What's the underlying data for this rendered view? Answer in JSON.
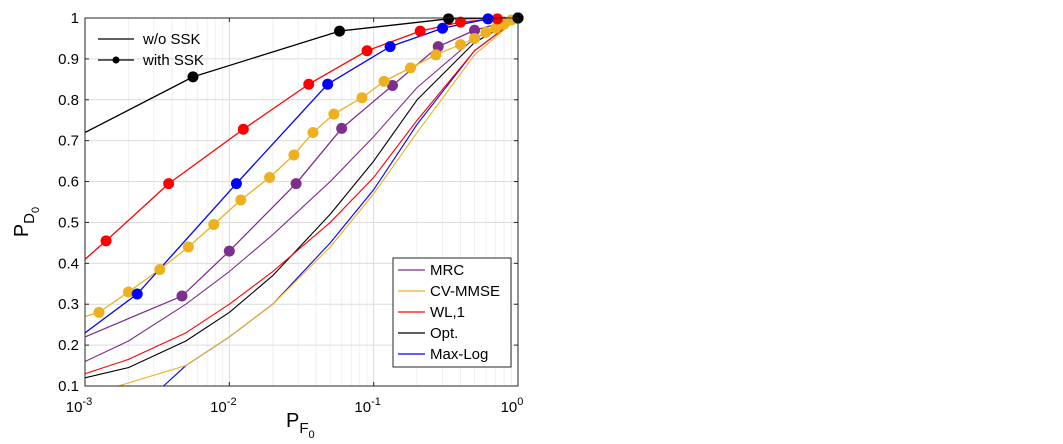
{
  "chart_data": {
    "type": "line",
    "xscale": "log",
    "xlim": [
      0.001,
      1
    ],
    "ylim": [
      0.1,
      1
    ],
    "grid": true,
    "xlabel": {
      "main": "P",
      "sub1": "F",
      "sub2": "0"
    },
    "ylabel": {
      "main": "P",
      "sub1": "D",
      "sub2": "0"
    },
    "x_ticks": [
      {
        "value": 0.001,
        "base": "10",
        "exp": "-3"
      },
      {
        "value": 0.01,
        "base": "10",
        "exp": "-2"
      },
      {
        "value": 0.1,
        "base": "10",
        "exp": "-1"
      },
      {
        "value": 1,
        "base": "10",
        "exp": "0"
      }
    ],
    "y_ticks": [
      {
        "value": 0.1,
        "label": "0.1"
      },
      {
        "value": 0.2,
        "label": "0.2"
      },
      {
        "value": 0.3,
        "label": "0.3"
      },
      {
        "value": 0.4,
        "label": "0.4"
      },
      {
        "value": 0.5,
        "label": "0.5"
      },
      {
        "value": 0.6,
        "label": "0.6"
      },
      {
        "value": 0.7,
        "label": "0.7"
      },
      {
        "value": 0.8,
        "label": "0.8"
      },
      {
        "value": 0.9,
        "label": "0.9"
      },
      {
        "value": 1,
        "label": "1"
      }
    ],
    "legend_style": {
      "position": "top-left",
      "entries": [
        {
          "label": "w/o SSK",
          "marker": false
        },
        {
          "label": "with SSK",
          "marker": true
        }
      ]
    },
    "legend_detectors": {
      "position": "bottom-right",
      "entries": [
        {
          "label": "MRC",
          "color": "#7E2F8E"
        },
        {
          "label": "CV-MMSE",
          "color": "#EDB120"
        },
        {
          "label": "WL,1",
          "color": "#FF0000"
        },
        {
          "label": "Opt.",
          "color": "#000000"
        },
        {
          "label": "Max-Log",
          "color": "#0000FF"
        }
      ]
    },
    "series": [
      {
        "name": "Opt.",
        "with_ssk": false,
        "color": "#000000",
        "x": [
          0.001,
          0.002,
          0.005,
          0.01,
          0.02,
          0.05,
          0.1,
          0.2,
          0.5,
          1
        ],
        "y": [
          0.12,
          0.145,
          0.21,
          0.28,
          0.37,
          0.52,
          0.65,
          0.8,
          0.94,
          1.0
        ]
      },
      {
        "name": "Max-Log",
        "with_ssk": false,
        "color": "#0000FF",
        "x": [
          0.0035,
          0.005,
          0.01,
          0.02,
          0.05,
          0.1,
          0.2,
          0.5,
          1
        ],
        "y": [
          0.1,
          0.15,
          0.22,
          0.3,
          0.45,
          0.58,
          0.74,
          0.92,
          1.0
        ]
      },
      {
        "name": "WL,1",
        "with_ssk": false,
        "color": "#FF0000",
        "x": [
          0.001,
          0.002,
          0.005,
          0.01,
          0.02,
          0.05,
          0.1,
          0.2,
          0.5,
          1
        ],
        "y": [
          0.13,
          0.165,
          0.23,
          0.3,
          0.38,
          0.5,
          0.61,
          0.75,
          0.92,
          1.0
        ]
      },
      {
        "name": "CV-MMSE",
        "with_ssk": false,
        "color": "#EDB120",
        "x": [
          0.0017,
          0.005,
          0.01,
          0.02,
          0.05,
          0.1,
          0.2,
          0.5,
          1
        ],
        "y": [
          0.1,
          0.15,
          0.22,
          0.3,
          0.44,
          0.57,
          0.72,
          0.91,
          1.0
        ]
      },
      {
        "name": "MRC",
        "with_ssk": false,
        "color": "#7E2F8E",
        "x": [
          0.001,
          0.002,
          0.005,
          0.01,
          0.02,
          0.05,
          0.1,
          0.2,
          0.5,
          1
        ],
        "y": [
          0.16,
          0.21,
          0.3,
          0.38,
          0.47,
          0.6,
          0.71,
          0.83,
          0.95,
          1.0
        ]
      },
      {
        "name": "MRC",
        "with_ssk": true,
        "color": "#7E2F8E",
        "x": [
          0.001,
          0.0047,
          0.01,
          0.029,
          0.06,
          0.135,
          0.28,
          0.5,
          0.8,
          1
        ],
        "y": [
          0.22,
          0.32,
          0.43,
          0.595,
          0.73,
          0.835,
          0.93,
          0.97,
          0.99,
          1.0
        ]
      },
      {
        "name": "CV-MMSE",
        "with_ssk": true,
        "color": "#EDB120",
        "x": [
          0.001,
          0.00125,
          0.002,
          0.0033,
          0.0052,
          0.0078,
          0.012,
          0.019,
          0.028,
          0.038,
          0.053,
          0.083,
          0.118,
          0.18,
          0.27,
          0.4,
          0.5,
          0.6,
          0.7,
          0.8,
          0.9,
          1
        ],
        "y": [
          0.27,
          0.28,
          0.33,
          0.385,
          0.44,
          0.495,
          0.555,
          0.61,
          0.665,
          0.72,
          0.765,
          0.805,
          0.845,
          0.878,
          0.91,
          0.935,
          0.95,
          0.965,
          0.975,
          0.985,
          0.995,
          1.0
        ]
      },
      {
        "name": "WL,1",
        "with_ssk": true,
        "color": "#FF0000",
        "x": [
          0.001,
          0.0014,
          0.0038,
          0.0125,
          0.0355,
          0.09,
          0.21,
          0.4,
          0.72,
          1
        ],
        "y": [
          0.41,
          0.455,
          0.595,
          0.728,
          0.838,
          0.92,
          0.968,
          0.99,
          0.998,
          1.0
        ]
      },
      {
        "name": "Max-Log",
        "with_ssk": true,
        "color": "#0000FF",
        "x": [
          0.001,
          0.0023,
          0.0112,
          0.048,
          0.13,
          0.3,
          0.62,
          1
        ],
        "y": [
          0.23,
          0.325,
          0.595,
          0.838,
          0.93,
          0.975,
          0.998,
          1.0
        ]
      },
      {
        "name": "Opt.",
        "with_ssk": true,
        "color": "#000000",
        "x": [
          0.001,
          0.0056,
          0.058,
          0.33,
          1
        ],
        "y": [
          0.72,
          0.856,
          0.968,
          0.998,
          1.0
        ]
      }
    ]
  }
}
